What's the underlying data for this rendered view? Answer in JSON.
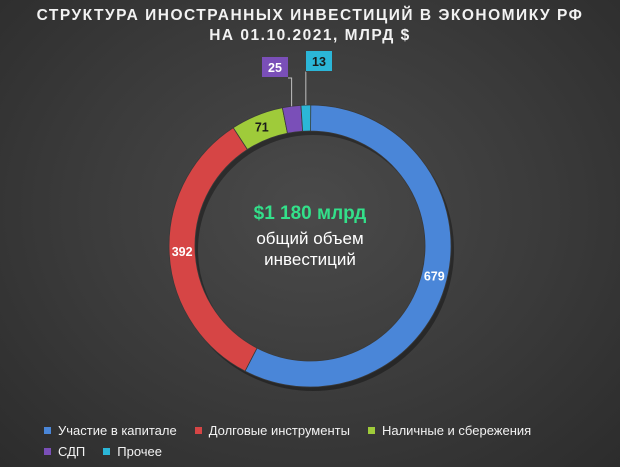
{
  "title_line1": "СТРУКТУРА ИНОСТРАННЫХ ИНВЕСТИЦИЙ В ЭКОНОМИКУ РФ",
  "title_line2": "НА 01.10.2021, МЛРД $",
  "center_total": "$1 180 млрд",
  "center_desc_line1": "общий объем",
  "center_desc_line2": "инвестиций",
  "chart_data": {
    "type": "pie",
    "title": "СТРУКТУРА ИНОСТРАННЫХ ИНВЕСТИЦИЙ В ЭКОНОМИКУ РФ НА 01.10.2021, МЛРД $",
    "categories": [
      "Участие в капитале",
      "Долговые инструменты",
      "Наличные и сбережения",
      "СДП",
      "Прочее"
    ],
    "values": [
      679,
      392,
      71,
      25,
      13
    ],
    "colors": [
      "#4a86d8",
      "#d64545",
      "#9fcb3a",
      "#7a4fb8",
      "#2bb6d8"
    ],
    "data_labels": [
      "679",
      "392",
      "71",
      "25",
      "13"
    ],
    "legend_position": "bottom",
    "donut": true
  },
  "legend": {
    "rows": [
      [
        0,
        1,
        2
      ],
      [
        3,
        4
      ]
    ]
  }
}
